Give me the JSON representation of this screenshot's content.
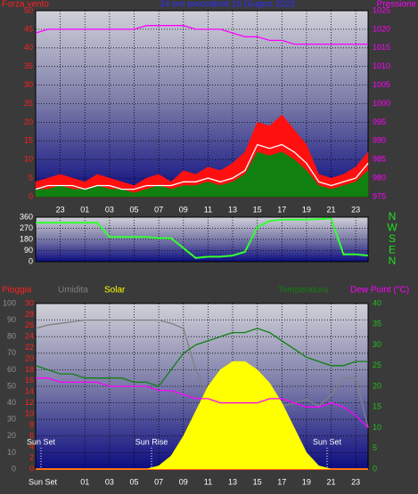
{
  "chart_data": [
    {
      "type": "line",
      "title": "24 ore precedenti 18 Giugno 2023",
      "y_label": "Forza vento",
      "y2_label": "Pressione",
      "y_color": "#ff2020",
      "y2_color": "#ff00ff",
      "title_color": "#3030ff",
      "grid": true,
      "categories": [
        null,
        null,
        "23",
        null,
        "01",
        null,
        "03",
        null,
        "05",
        null,
        "07",
        null,
        "09",
        null,
        "11",
        null,
        "13",
        null,
        "15",
        null,
        "17",
        null,
        "19",
        null,
        "21",
        null,
        "23",
        null
      ],
      "ylim": [
        0,
        50
      ],
      "yticks": [
        0,
        5,
        10,
        15,
        20,
        25,
        30,
        35,
        40,
        45,
        50
      ],
      "y2lim": [
        975,
        1025
      ],
      "y2ticks": [
        975,
        980,
        985,
        990,
        995,
        1000,
        1005,
        1010,
        1015,
        1020,
        1025
      ],
      "series": [
        {
          "color": "#ff1010",
          "style": "area",
          "values": [
            4,
            5,
            6,
            5,
            4,
            6,
            5,
            4,
            3,
            5,
            6,
            4,
            7,
            6,
            8,
            7,
            9,
            12,
            20,
            19,
            22,
            18,
            14,
            6,
            5,
            6,
            8,
            12
          ]
        },
        {
          "color": "#108010",
          "style": "area",
          "values": [
            2,
            2,
            3,
            2,
            2,
            3,
            2,
            2,
            1,
            2,
            3,
            2,
            3,
            3,
            4,
            3,
            4,
            6,
            12,
            11,
            12,
            10,
            7,
            3,
            2,
            3,
            4,
            7
          ]
        },
        {
          "color": "#ffffff",
          "style": "line",
          "values": [
            2,
            3,
            3,
            3,
            2,
            3,
            3,
            2,
            2,
            3,
            3,
            3,
            4,
            4,
            5,
            4,
            5,
            7,
            14,
            13,
            14,
            12,
            9,
            4,
            3,
            4,
            5,
            9
          ]
        },
        {
          "color": "#ff00ff",
          "style": "line",
          "axis": "y2",
          "values": [
            1019,
            1020,
            1020,
            1020,
            1020,
            1020,
            1020,
            1020,
            1020,
            1021,
            1021,
            1021,
            1021,
            1020,
            1020,
            1020,
            1019,
            1018,
            1018,
            1017,
            1017,
            1016,
            1016,
            1016,
            1016,
            1016,
            1016,
            1016
          ]
        }
      ]
    },
    {
      "type": "line",
      "y_color": "#ffffff",
      "y2_color": "#20e020",
      "grid": true,
      "ylim": [
        0,
        360
      ],
      "yticks": [
        0,
        90,
        180,
        270,
        360
      ],
      "y2lim": [
        0,
        360
      ],
      "y2ticks": [
        {
          "value": 360,
          "label": "N"
        },
        {
          "value": 270,
          "label": "W"
        },
        {
          "value": 180,
          "label": "S"
        },
        {
          "value": 90,
          "label": "E"
        },
        {
          "value": 0,
          "label": "N"
        }
      ],
      "series": [
        {
          "color": "#33ff33",
          "style": "line",
          "values": [
            315,
            315,
            315,
            315,
            315,
            315,
            200,
            200,
            200,
            200,
            190,
            190,
            110,
            30,
            40,
            40,
            50,
            80,
            280,
            330,
            340,
            340,
            340,
            345,
            350,
            60,
            60,
            50
          ]
        }
      ]
    },
    {
      "type": "line",
      "y_color": "#909090",
      "y2_color": "#20c020",
      "y3_color": "#ff2020",
      "grid": true,
      "categories": [
        "Sun Set",
        null,
        null,
        null,
        "01",
        null,
        "03",
        null,
        "05",
        null,
        "07",
        null,
        "09",
        null,
        "11",
        null,
        "13",
        null,
        "15",
        null,
        "17",
        null,
        "19",
        null,
        "21",
        null,
        "23",
        null
      ],
      "ylim": [
        0,
        100
      ],
      "yticks": [
        0,
        10,
        20,
        30,
        40,
        50,
        60,
        70,
        80,
        90,
        100
      ],
      "y2lim": [
        0,
        40
      ],
      "y2ticks": [
        0,
        5,
        10,
        15,
        20,
        25,
        30,
        35,
        40
      ],
      "y3lim": [
        0,
        30
      ],
      "y3ticks": [
        0,
        2,
        4,
        6,
        8,
        10,
        12,
        14,
        16,
        18,
        20,
        22,
        24,
        26,
        28,
        30
      ],
      "annotations": [
        "Sun Set",
        "Sun Rise",
        "Sun Set"
      ],
      "series": [
        {
          "name": "Pioggia",
          "color": "#ff2020",
          "style": "line",
          "axis": "y3",
          "values": [
            0,
            0,
            0,
            0,
            0,
            0,
            0,
            0,
            0,
            0,
            0,
            0,
            0,
            0,
            0,
            0,
            0,
            0,
            0,
            0,
            0,
            0,
            0,
            0,
            0,
            0,
            0,
            0
          ]
        },
        {
          "name": "Umidita",
          "color": "#808080",
          "style": "line",
          "values": [
            85,
            87,
            88,
            89,
            90,
            90,
            90,
            90,
            90,
            90,
            90,
            88,
            85,
            60,
            45,
            42,
            40,
            35,
            32,
            33,
            38,
            40,
            42,
            38,
            45,
            55,
            55,
            25
          ]
        },
        {
          "name": "Solar",
          "color": "#ffff00",
          "style": "area",
          "values": [
            0,
            0,
            0,
            0,
            0,
            0,
            0,
            0,
            0,
            0,
            2,
            8,
            20,
            35,
            50,
            60,
            65,
            65,
            60,
            52,
            40,
            25,
            10,
            2,
            0,
            0,
            0,
            0
          ]
        },
        {
          "name": "Temperatura",
          "color": "#108010",
          "style": "line",
          "axis": "y2",
          "values": [
            25,
            24,
            23,
            23,
            22,
            22,
            22,
            22,
            21,
            21,
            20,
            24,
            28,
            30,
            31,
            32,
            33,
            33,
            34,
            33,
            31,
            29,
            27,
            26,
            25,
            25,
            26,
            26
          ]
        },
        {
          "name": "Dew Point (°C)",
          "color": "#ff00ff",
          "style": "line",
          "axis": "y2",
          "values": [
            22,
            22,
            21,
            21,
            21,
            21,
            20,
            20,
            20,
            20,
            19,
            19,
            18,
            17,
            17,
            16,
            16,
            16,
            16,
            17,
            17,
            16,
            15,
            15,
            16,
            15,
            13,
            10
          ]
        }
      ]
    }
  ]
}
